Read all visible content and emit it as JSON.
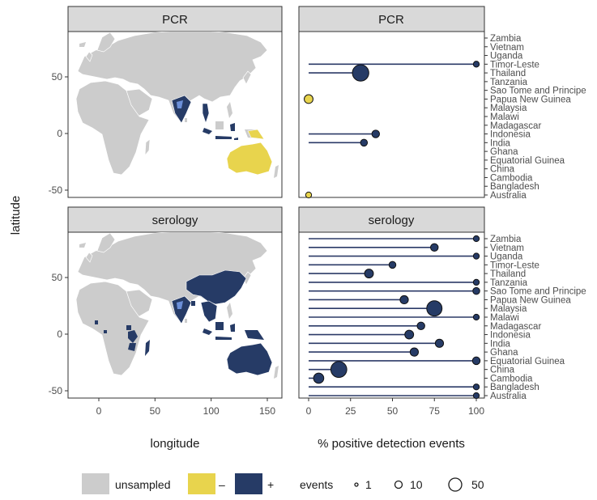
{
  "colors": {
    "unsampled": "#cccccc",
    "negative": "#e8d44d",
    "positive": "#263b66",
    "light_positive": "#6b8fd8",
    "strip": "#d9d9d9",
    "line": "#2b3a67"
  },
  "axes": {
    "y_label": "latitude",
    "x_label_map": "longitude",
    "x_label_lollipop": "% positive detection events",
    "map_x_ticks": [
      "0",
      "50",
      "100",
      "150"
    ],
    "map_y_ticks": [
      "50",
      "0",
      "-50"
    ],
    "pct_ticks": [
      "0",
      "25",
      "50",
      "75",
      "100"
    ]
  },
  "panels": {
    "pcr_strip": "PCR",
    "serology_strip": "serology"
  },
  "legend": {
    "fill_items": [
      {
        "label": "unsampled"
      },
      {
        "label": "–"
      },
      {
        "label": "+"
      }
    ],
    "size_title": "events",
    "size_items": [
      "1",
      "10",
      "50"
    ]
  },
  "chart_data": [
    {
      "type": "scatter",
      "title": "PCR",
      "xlabel": "% positive detection events",
      "xlim": [
        0,
        100
      ],
      "categories": [
        "Zambia",
        "Vietnam",
        "Uganda",
        "Timor-Leste",
        "Thailand",
        "Tanzania",
        "Sao Tome and Principe",
        "Papua New Guinea",
        "Malaysia",
        "Malawi",
        "Madagascar",
        "Indonesia",
        "India",
        "Ghana",
        "Equatorial Guinea",
        "China",
        "Cambodia",
        "Bangladesh",
        "Australia"
      ],
      "points": [
        {
          "country": "Timor-Leste",
          "value": 100,
          "events": 1,
          "result": "+"
        },
        {
          "country": "Thailand",
          "value": 31,
          "events": 30,
          "result": "+"
        },
        {
          "country": "Papua New Guinea",
          "value": 0,
          "events": 5,
          "result": "–"
        },
        {
          "country": "Indonesia",
          "value": 40,
          "events": 3,
          "result": "+"
        },
        {
          "country": "India",
          "value": 33,
          "events": 2,
          "result": "+"
        },
        {
          "country": "Australia",
          "value": 0,
          "events": 1,
          "result": "–"
        }
      ]
    },
    {
      "type": "scatter",
      "title": "serology",
      "xlabel": "% positive detection events",
      "xlim": [
        0,
        100
      ],
      "categories": [
        "Zambia",
        "Vietnam",
        "Uganda",
        "Timor-Leste",
        "Thailand",
        "Tanzania",
        "Sao Tome and Principe",
        "Papua New Guinea",
        "Malaysia",
        "Malawi",
        "Madagascar",
        "Indonesia",
        "India",
        "Ghana",
        "Equatorial Guinea",
        "China",
        "Cambodia",
        "Bangladesh",
        "Australia"
      ],
      "points": [
        {
          "country": "Zambia",
          "value": 100,
          "events": 1,
          "result": "+"
        },
        {
          "country": "Vietnam",
          "value": 75,
          "events": 3,
          "result": "+"
        },
        {
          "country": "Uganda",
          "value": 100,
          "events": 1,
          "result": "+"
        },
        {
          "country": "Timor-Leste",
          "value": 50,
          "events": 2,
          "result": "+"
        },
        {
          "country": "Thailand",
          "value": 36,
          "events": 5,
          "result": "+"
        },
        {
          "country": "Tanzania",
          "value": 100,
          "events": 1,
          "result": "+"
        },
        {
          "country": "Sao Tome and Principe",
          "value": 100,
          "events": 2,
          "result": "+"
        },
        {
          "country": "Papua New Guinea",
          "value": 57,
          "events": 4,
          "result": "+"
        },
        {
          "country": "Malaysia",
          "value": 75,
          "events": 25,
          "result": "+"
        },
        {
          "country": "Malawi",
          "value": 100,
          "events": 1,
          "result": "+"
        },
        {
          "country": "Madagascar",
          "value": 67,
          "events": 3,
          "result": "+"
        },
        {
          "country": "Indonesia",
          "value": 60,
          "events": 5,
          "result": "+"
        },
        {
          "country": "India",
          "value": 78,
          "events": 4,
          "result": "+"
        },
        {
          "country": "Ghana",
          "value": 63,
          "events": 4,
          "result": "+"
        },
        {
          "country": "Equatorial Guinea",
          "value": 100,
          "events": 3,
          "result": "+"
        },
        {
          "country": "China",
          "value": 18,
          "events": 28,
          "result": "+"
        },
        {
          "country": "Cambodia",
          "value": 6,
          "events": 8,
          "result": "+"
        },
        {
          "country": "Bangladesh",
          "value": 100,
          "events": 1,
          "result": "+"
        },
        {
          "country": "Australia",
          "value": 100,
          "events": 1,
          "result": "+"
        }
      ]
    }
  ]
}
